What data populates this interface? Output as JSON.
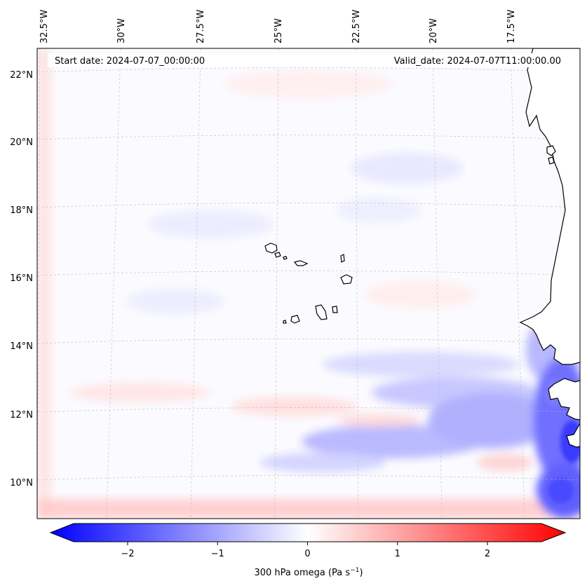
{
  "header": {
    "start_label": "Start date: 2024-07-07_00:00:00",
    "valid_label": "Valid_date: 2024-07-07T11:00:00.00"
  },
  "longitude_labels": [
    "32.5°W",
    "30°W",
    "27.5°W",
    "25°W",
    "22.5°W",
    "20°W",
    "17.5°W"
  ],
  "latitude_labels": [
    "22°N",
    "20°N",
    "18°N",
    "16°N",
    "14°N",
    "12°N",
    "10°N"
  ],
  "field": {
    "variable": "300 hPa omega",
    "colormap": "bwr",
    "colors": {
      "negative": "#0000ff",
      "zero": "#ffffff",
      "positive": "#ff0000"
    }
  },
  "colorbar": {
    "label_main": "300 hPa omega (Pa s",
    "label_exp": "−1",
    "label_close": ")",
    "tick_labels": [
      "−2",
      "−1",
      "0",
      "1",
      "2"
    ],
    "ticks": [
      -2,
      -1,
      0,
      1,
      2
    ],
    "range": [
      -2.6,
      2.6
    ],
    "extend": "both"
  }
}
